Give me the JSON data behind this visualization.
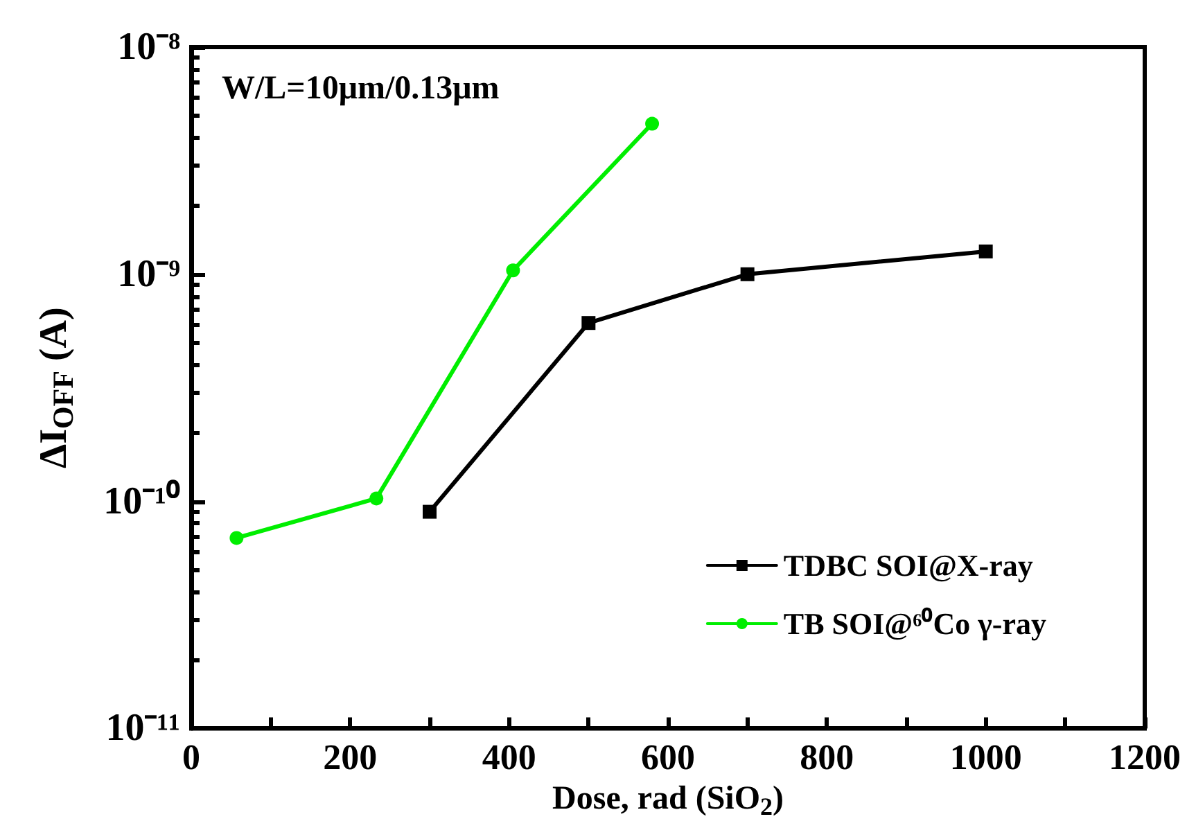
{
  "chart_data": {
    "type": "line",
    "xlabel": "Dose, rad (SiO$_{2}$)",
    "ylabel": "ΔI$_{OFF}$ (A)",
    "log": "y",
    "grid": false,
    "legend": "bottom right",
    "line_style": "solid",
    "annotations": [
      "W/L=10μm/0.13μm"
    ],
    "xlim": [
      0,
      1200
    ],
    "xticks": [
      0,
      200,
      400,
      600,
      800,
      1000,
      1200
    ],
    "ylim": [
      1e-11,
      1e-08
    ],
    "yticks": [
      {
        "value": 1e-11,
        "label": "10⁻¹¹"
      },
      {
        "value": 1e-10,
        "label": "10⁻¹⁰"
      },
      {
        "value": 1e-09,
        "label": "10⁻⁹"
      },
      {
        "value": 1e-08,
        "label": "10⁻⁸"
      }
    ],
    "series": [
      {
        "name": "TDBC SOI@X-ray",
        "color": "#000000",
        "marker": "square",
        "x": [
          300,
          500,
          700,
          1000
        ],
        "values": [
          9e-11,
          6.1e-10,
          1e-09,
          1.26e-09
        ]
      },
      {
        "name": "TB SOI@⁶⁰Co γ-ray",
        "color": "#00ee00",
        "marker": "circle",
        "x": [
          57,
          233,
          405,
          580
        ],
        "values": [
          6.9e-11,
          1.03e-10,
          1.04e-09,
          4.6e-09
        ]
      }
    ]
  }
}
